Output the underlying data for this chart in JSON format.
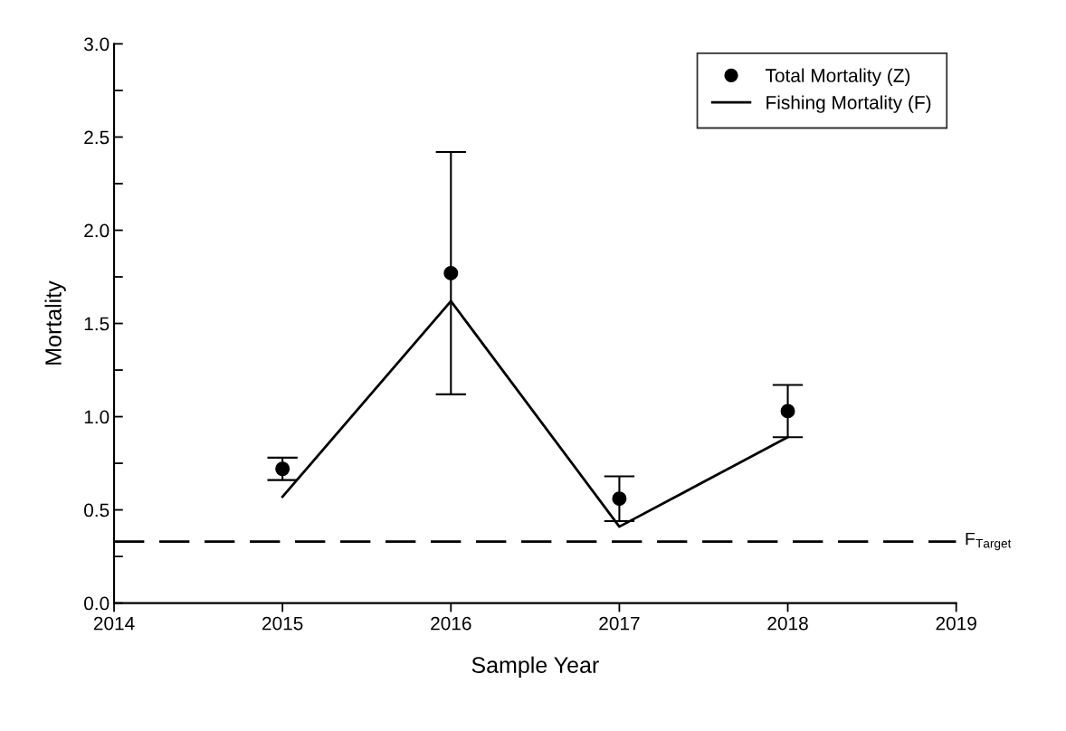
{
  "chart_data": {
    "type": "scatter",
    "xlabel": "Sample Year",
    "ylabel": "Mortality",
    "x": [
      2015,
      2016,
      2017,
      2018
    ],
    "series": [
      {
        "name": "Total Mortality (Z)",
        "color": "#000000",
        "marker": "circle",
        "values": [
          0.72,
          1.77,
          0.56,
          1.03
        ],
        "errors": [
          [
            0.66,
            0.78
          ],
          [
            1.12,
            2.42
          ],
          [
            0.44,
            0.68
          ],
          [
            0.89,
            1.17
          ]
        ]
      },
      {
        "name": "Fishing Mortality (F)",
        "type": "line",
        "color": "#000000",
        "marker": "none",
        "line_style": "solid",
        "values": [
          0.57,
          1.62,
          0.41,
          0.89
        ]
      }
    ],
    "ref_lines": [
      {
        "axis": "y",
        "value": 0.33,
        "label": "F$_{Target}$",
        "color": "#000000",
        "line_style": "dashed"
      }
    ],
    "xlim": [
      2014,
      2019
    ],
    "xticks": [
      2014,
      2015,
      2016,
      2017,
      2018,
      2019
    ],
    "ylim": [
      0,
      3
    ],
    "yticks": [
      {
        "value": 0,
        "label": "0.0"
      },
      {
        "value": 0.25,
        "label": null
      },
      {
        "value": 0.5,
        "label": "0.5"
      },
      {
        "value": 0.75,
        "label": null
      },
      {
        "value": 1,
        "label": "1.0"
      },
      {
        "value": 1.25,
        "label": null
      },
      {
        "value": 1.5,
        "label": "1.5"
      },
      {
        "value": 1.75,
        "label": null
      },
      {
        "value": 2,
        "label": "2.0"
      },
      {
        "value": 2.25,
        "label": null
      },
      {
        "value": 2.5,
        "label": "2.5"
      },
      {
        "value": 2.75,
        "label": null
      },
      {
        "value": 3,
        "label": "3.0"
      }
    ],
    "grid": false,
    "legend": "top right"
  }
}
